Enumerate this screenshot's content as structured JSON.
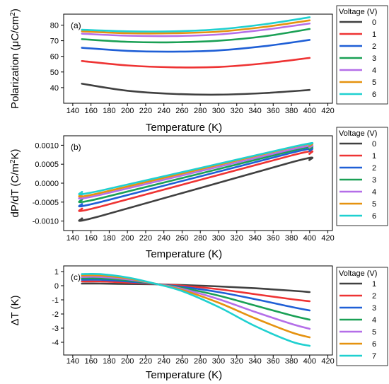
{
  "colors": [
    "#404040",
    "#ee3333",
    "#1f5fd6",
    "#1aa055",
    "#b46ee8",
    "#e5920f",
    "#1fd0d0"
  ],
  "chart_data": [
    {
      "type": "line",
      "panel_label": "(a)",
      "xlabel": "Temperature (K)",
      "ylabel_parts": [
        "Polarization (",
        "μC/cm",
        "2",
        ")"
      ],
      "xlim": [
        130,
        425
      ],
      "ylim": [
        30,
        87
      ],
      "xticks": [
        140,
        160,
        180,
        200,
        220,
        240,
        260,
        280,
        300,
        320,
        340,
        360,
        380,
        400,
        420
      ],
      "yticks": [
        40,
        50,
        60,
        70,
        80
      ],
      "legend_title": "Voltage (V)",
      "legend_placement": "right-outside",
      "x": [
        150,
        200,
        250,
        300,
        350,
        400
      ],
      "series": [
        {
          "name": "0",
          "values": [
            42.5,
            38.0,
            36.0,
            35.5,
            36.5,
            38.5
          ]
        },
        {
          "name": "1",
          "values": [
            57.0,
            54.2,
            53.0,
            53.2,
            55.5,
            59.0
          ]
        },
        {
          "name": "2",
          "values": [
            65.5,
            63.5,
            63.0,
            63.8,
            66.5,
            70.5
          ]
        },
        {
          "name": "3",
          "values": [
            71.0,
            69.3,
            69.0,
            70.0,
            72.8,
            77.5
          ]
        },
        {
          "name": "4",
          "values": [
            74.5,
            73.2,
            73.0,
            74.0,
            77.0,
            81.0
          ]
        },
        {
          "name": "5",
          "values": [
            76.0,
            74.8,
            74.8,
            75.8,
            78.8,
            83.0
          ]
        },
        {
          "name": "6",
          "values": [
            77.0,
            76.0,
            76.0,
            77.3,
            80.5,
            85.0
          ]
        }
      ]
    },
    {
      "type": "line",
      "panel_label": "(b)",
      "xlabel": "Temperature (K)",
      "ylabel_parts": [
        "dP/dT (C/m",
        "2",
        "K)"
      ],
      "xlim": [
        130,
        425
      ],
      "ylim": [
        -0.00125,
        0.00125
      ],
      "xticks": [
        140,
        160,
        180,
        200,
        220,
        240,
        260,
        280,
        300,
        320,
        340,
        360,
        380,
        400,
        420
      ],
      "yticks": [
        -0.001,
        -0.0005,
        0.0,
        0.0005,
        0.001
      ],
      "ytick_labels": [
        "-0.0010",
        "-0.0005",
        "0.0000",
        "0.0005",
        "0.0010"
      ],
      "legend_title": "Voltage (V)",
      "legend_placement": "right-outside",
      "x": [
        150,
        170,
        380,
        400
      ],
      "series": [
        {
          "name": "0",
          "values": [
            -0.00093,
            -0.00087,
            0.00055,
            0.00061
          ]
        },
        {
          "name": "1",
          "values": [
            -0.00067,
            -0.00062,
            0.00073,
            0.00077
          ]
        },
        {
          "name": "2",
          "values": [
            -0.00055,
            -0.0005,
            0.0008,
            0.00085
          ]
        },
        {
          "name": "3",
          "values": [
            -0.00043,
            -0.0004,
            0.00085,
            0.0009
          ]
        },
        {
          "name": "4",
          "values": [
            -0.00034,
            -0.00031,
            0.00089,
            0.00094
          ]
        },
        {
          "name": "5",
          "values": [
            -0.00028,
            -0.00026,
            0.00094,
            0.00098
          ]
        },
        {
          "name": "6",
          "values": [
            -0.00023,
            -0.0002,
            0.00095,
            0.00102
          ]
        }
      ]
    },
    {
      "type": "line",
      "panel_label": "(c)",
      "xlabel": "Temperature (K)",
      "ylabel_parts": [
        "ΔT (K)"
      ],
      "xlim": [
        130,
        425
      ],
      "ylim": [
        -4.9,
        1.4
      ],
      "xticks": [
        140,
        160,
        180,
        200,
        220,
        240,
        260,
        280,
        300,
        320,
        340,
        360,
        380,
        400,
        420
      ],
      "yticks": [
        -4,
        -3,
        -2,
        -1,
        0,
        1
      ],
      "legend_title": "Voltage (V)",
      "legend_placement": "right-outside",
      "x": [
        150,
        170,
        200,
        230,
        260,
        300,
        340,
        380,
        400
      ],
      "series": [
        {
          "name": "1",
          "values": [
            0.15,
            0.15,
            0.12,
            0.1,
            0.05,
            -0.05,
            -0.18,
            -0.35,
            -0.45
          ]
        },
        {
          "name": "2",
          "values": [
            0.3,
            0.3,
            0.22,
            0.12,
            0.0,
            -0.25,
            -0.6,
            -0.95,
            -1.1
          ]
        },
        {
          "name": "3",
          "values": [
            0.42,
            0.42,
            0.3,
            0.13,
            -0.08,
            -0.45,
            -0.95,
            -1.5,
            -1.75
          ]
        },
        {
          "name": "4",
          "values": [
            0.52,
            0.52,
            0.38,
            0.14,
            -0.15,
            -0.7,
            -1.4,
            -2.1,
            -2.4
          ]
        },
        {
          "name": "5",
          "values": [
            0.62,
            0.62,
            0.45,
            0.15,
            -0.22,
            -0.95,
            -1.85,
            -2.7,
            -3.05
          ]
        },
        {
          "name": "6",
          "values": [
            0.72,
            0.72,
            0.52,
            0.15,
            -0.3,
            -1.2,
            -2.3,
            -3.3,
            -3.65
          ]
        },
        {
          "name": "7",
          "values": [
            0.82,
            0.82,
            0.58,
            0.15,
            -0.38,
            -1.5,
            -2.85,
            -3.95,
            -4.25
          ]
        }
      ]
    }
  ]
}
